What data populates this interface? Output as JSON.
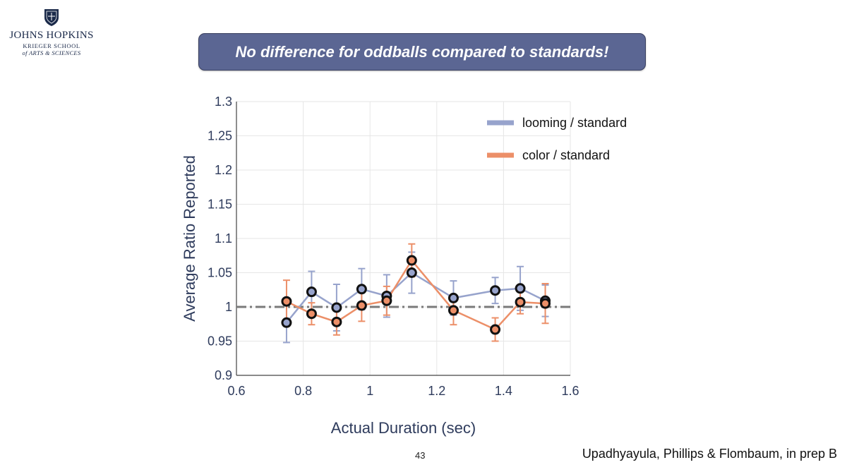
{
  "logo": {
    "name": "JOHNS HOPKINS",
    "school_line1": "KRIEGER SCHOOL",
    "school_line2": "of ARTS & SCIENCES"
  },
  "banner": {
    "text": "No difference for oddballs compared to standards!"
  },
  "page_number": "43",
  "citation": "Upadhyayula, Phillips & Flombaum, in prep B",
  "chart_data": {
    "type": "line",
    "title": "",
    "xlabel": "Actual Duration (sec)",
    "ylabel": "Average Ratio Reported",
    "xlim": [
      0.6,
      1.6
    ],
    "ylim": [
      0.9,
      1.3
    ],
    "xticks": [
      0.6,
      0.8,
      1.0,
      1.2,
      1.4,
      1.6
    ],
    "xtick_labels": [
      "0.6",
      "0.8",
      "1",
      "1.2",
      "1.4",
      "1.6"
    ],
    "yticks": [
      0.9,
      0.95,
      1.0,
      1.05,
      1.1,
      1.15,
      1.2,
      1.25,
      1.3
    ],
    "ytick_labels": [
      "0.9",
      "0.95",
      "1",
      "1.05",
      "1.1",
      "1.15",
      "1.2",
      "1.25",
      "1.3"
    ],
    "grid": true,
    "legend_position": "top-right",
    "reference_line": {
      "y": 1.0,
      "style": "dash-dot",
      "color": "#7a7a7a"
    },
    "series": [
      {
        "name": "looming / standard",
        "color": "#97a3cc",
        "x": [
          0.75,
          0.825,
          0.9,
          0.975,
          1.05,
          1.125,
          1.25,
          1.375,
          1.45,
          1.525
        ],
        "y": [
          0.977,
          1.022,
          0.999,
          1.026,
          1.016,
          1.05,
          1.013,
          1.024,
          1.027,
          1.009
        ],
        "err": [
          0.029,
          0.03,
          0.034,
          0.03,
          0.031,
          0.03,
          0.025,
          0.019,
          0.032,
          0.023
        ]
      },
      {
        "name": "color / standard",
        "color": "#ec8f68",
        "x": [
          0.75,
          0.825,
          0.9,
          0.975,
          1.05,
          1.125,
          1.25,
          1.375,
          1.45,
          1.525
        ],
        "y": [
          1.008,
          0.99,
          0.978,
          1.002,
          1.009,
          1.068,
          0.995,
          0.967,
          1.007,
          1.005
        ],
        "err": [
          0.031,
          0.016,
          0.019,
          0.023,
          0.021,
          0.024,
          0.021,
          0.017,
          0.017,
          0.029
        ]
      }
    ]
  }
}
